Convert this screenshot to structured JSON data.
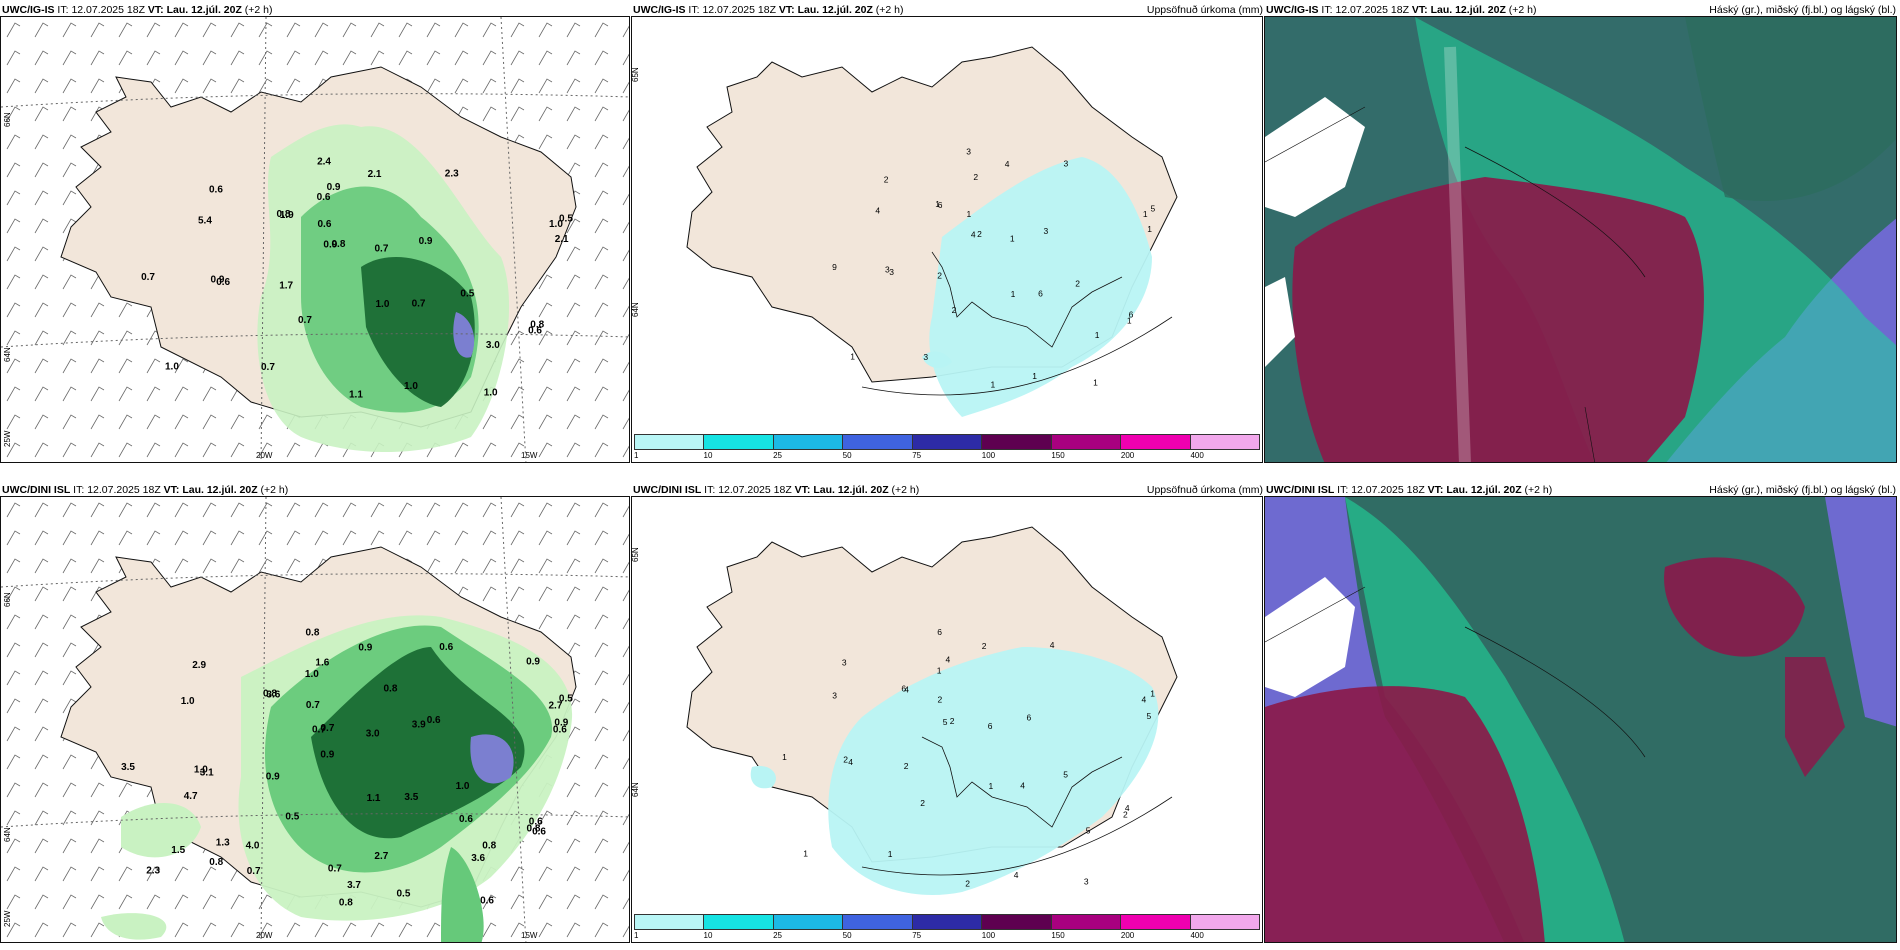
{
  "colors": {
    "land": "#f2e6da",
    "rain_light": "#c9f2c2",
    "rain_mid": "#66c97a",
    "rain_dark": "#1a6b34",
    "rain_peak": "#7b7fd0",
    "accum": "#b8f4f4",
    "cloud_high": "#6e6ad0",
    "cloud_mid": "#1fd59b",
    "cloud_low": "#8a1a4a"
  },
  "rows": [
    {
      "model": "UWC/IG-IS",
      "it_label": "IT:",
      "it_value": "12.07.2025 18Z",
      "vt_label": "VT:",
      "vt_value": "Lau. 12.júl. 20Z",
      "lead": "(+2 h)",
      "accum_title": "Uppsöfnuð úrkoma (mm)",
      "cloud_title": "Háský (gr.), miðský (fj.bl.) og lágský (bl.)",
      "lat_labels": [
        "66N",
        "64N",
        "25W"
      ],
      "accum_lat_labels": [
        "65N",
        "64N"
      ],
      "lon_labels": [
        "20W",
        "15W"
      ],
      "precip_values": [
        "0.6",
        "1.0",
        "1.0",
        "0.7",
        "0.8",
        "1.0",
        "0.9",
        "1.7",
        "2.1",
        "1.0",
        "3.0",
        "0.6",
        "0.5",
        "1.0",
        "0.9",
        "0.8",
        "0.9",
        "0.7",
        "0.8",
        "0.5",
        "0.7",
        "0.9",
        "2.4",
        "5.4",
        "1.9",
        "1.1",
        "0.7",
        "0.6",
        "0.6",
        "2.1",
        "2.3",
        "0.7",
        "0.6"
      ],
      "accum_values": [
        "1",
        "1",
        "1",
        "2",
        "2",
        "1",
        "3",
        "2",
        "4",
        "1",
        "1",
        "3",
        "5",
        "1",
        "2",
        "6",
        "4",
        "6",
        "1",
        "2",
        "1",
        "3",
        "3",
        "4",
        "6",
        "1",
        "9",
        "2",
        "1",
        "1",
        "3",
        "3"
      ]
    },
    {
      "model": "UWC/DINI ISL",
      "it_label": "IT:",
      "it_value": "12.07.2025 18Z",
      "vt_label": "VT:",
      "vt_value": "Lau. 12.júl. 20Z",
      "lead": "(+2 h)",
      "accum_title": "Uppsöfnuð úrkoma (mm)",
      "cloud_title": "Háský (gr.), miðský (fj.bl.) og lágský (bl.)",
      "lat_labels": [
        "66N",
        "64N",
        "25W"
      ],
      "accum_lat_labels": [
        "65N",
        "64N"
      ],
      "lon_labels": [
        "20W",
        "15W"
      ],
      "precip_values": [
        "0.8",
        "2.3",
        "1.1",
        "0.5",
        "0.7",
        "0.5",
        "1.0",
        "0.9",
        "0.9",
        "2.7",
        "0.8",
        "3.1",
        "0.5",
        "0.6",
        "1.6",
        "0.6",
        "0.7",
        "3.5",
        "0.8",
        "1.0",
        "3.0",
        "3.9",
        "0.8",
        "1.0",
        "3.6",
        "0.8",
        "3.5",
        "2.9",
        "0.7",
        "0.9",
        "0.6",
        "0.7",
        "1.0",
        "0.8",
        "2.7",
        "0.6",
        "0.9",
        "0.7",
        "0.6",
        "0.8",
        "0.6",
        "0.9",
        "1.3",
        "0.6",
        "3.6",
        "4.0",
        "3.7",
        "4.7",
        "1.5"
      ],
      "accum_values": [
        "2",
        "1",
        "1",
        "2",
        "2",
        "4",
        "2",
        "2",
        "2",
        "4",
        "5",
        "4",
        "1",
        "3",
        "4",
        "4",
        "5",
        "4",
        "6",
        "5",
        "6",
        "6",
        "6",
        "3",
        "4",
        "2",
        "1",
        "3",
        "2",
        "5",
        "4",
        "1",
        "1"
      ]
    }
  ],
  "colorbar": {
    "ticks": [
      "1",
      "10",
      "25",
      "50",
      "75",
      "100",
      "150",
      "200",
      "400"
    ],
    "colors": [
      "#b9f6f6",
      "#16e3e3",
      "#1cb9e6",
      "#3f63e0",
      "#2d2ba6",
      "#5e0050",
      "#a8007f",
      "#ef00b0",
      "#f2a8ec"
    ]
  }
}
